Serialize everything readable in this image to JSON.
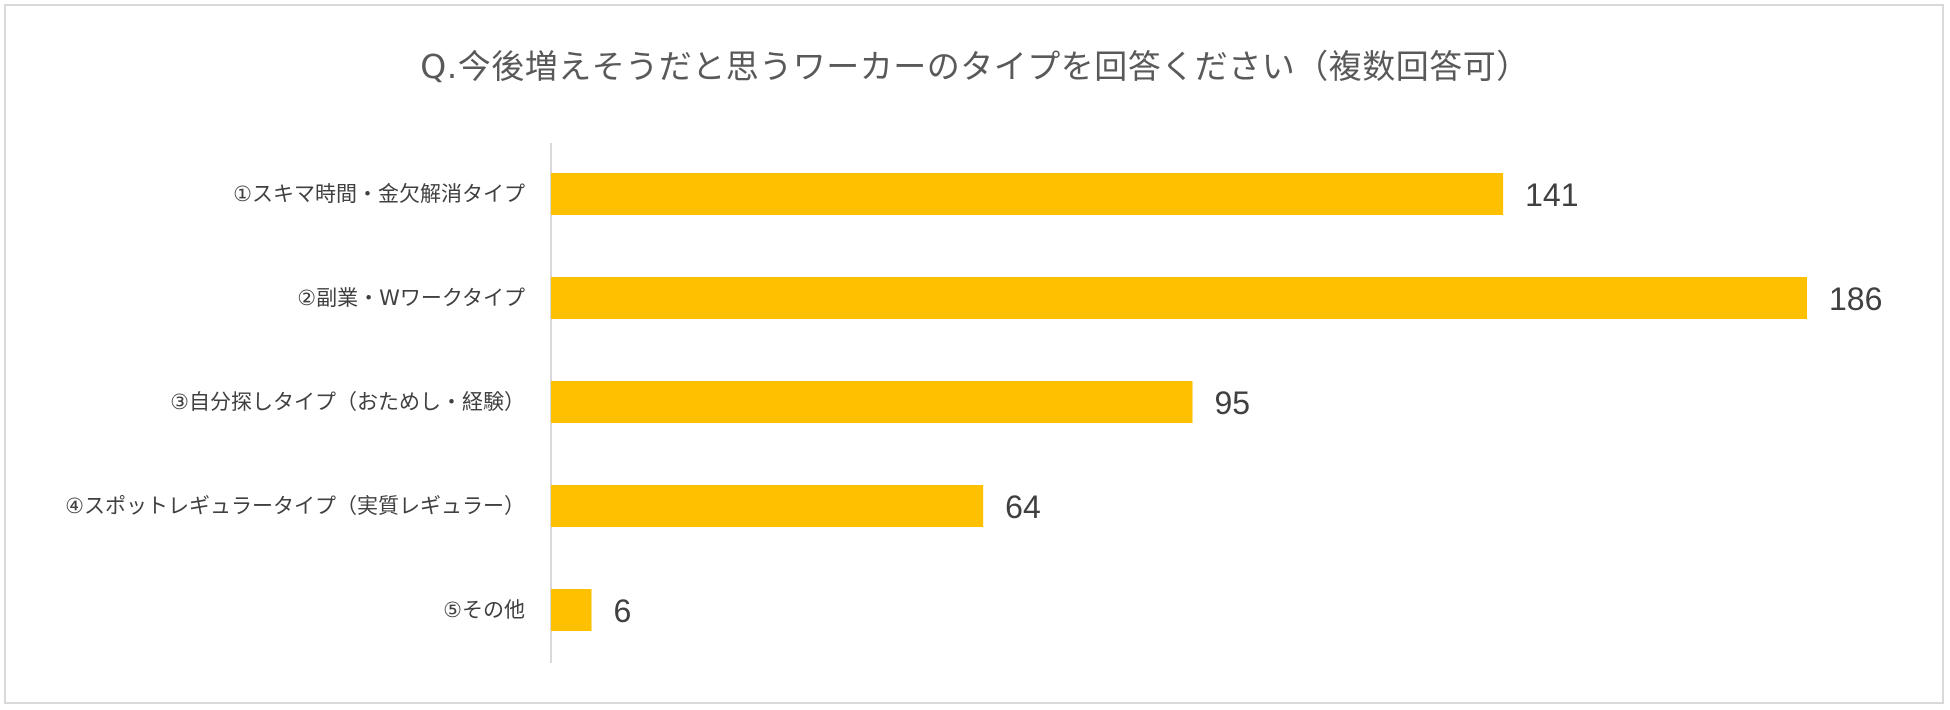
{
  "chart_data": {
    "type": "bar",
    "orientation": "horizontal",
    "title": "Q.今後増えそうだと思うワーカーのタイプを回答ください（複数回答可）",
    "categories": [
      "①スキマ時間・金欠解消タイプ",
      "②副業・Wワークタイプ",
      "③自分探しタイプ（おためし・経験）",
      "④スポットレギュラータイプ（実質レギュラー）",
      "⑤その他"
    ],
    "values": [
      141,
      186,
      95,
      64,
      6
    ],
    "xlim": [
      0,
      186
    ],
    "grid": false,
    "data_labels": true,
    "xlabel": "",
    "ylabel": "",
    "colors": {
      "bar": "#FFC000",
      "axis": "#d9d9d9",
      "text": "#404040",
      "title": "#595959"
    }
  }
}
